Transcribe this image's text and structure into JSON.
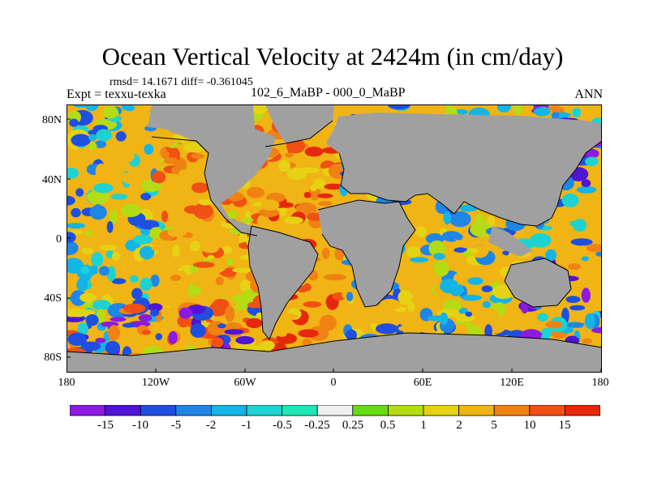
{
  "title": "Ocean Vertical Velocity at 2424m (in cm/day)",
  "stats": "rmsd= 14.1671 diff= -0.361045",
  "left_header": "Expt = texxu-texka",
  "center_header": "102_6_MaBP - 000_0_MaBP",
  "right_header": "ANN",
  "lat_labels": [
    "80N",
    "40N",
    "0",
    "40S",
    "80S"
  ],
  "lon_labels": [
    "180",
    "120W",
    "60W",
    "0",
    "60E",
    "120E",
    "180"
  ],
  "colorbar": {
    "labels": [
      "-15",
      "-10",
      "-5",
      "-2",
      "-1",
      "-0.5",
      "-0.25",
      "0.25",
      "0.5",
      "1",
      "2",
      "5",
      "10",
      "15"
    ],
    "colors": [
      "#8c1ae0",
      "#5014d6",
      "#1e4fe0",
      "#1e86e6",
      "#14b4e6",
      "#1ed2d2",
      "#1ee6b4",
      "#f0f0f0",
      "#64dc14",
      "#b4dc14",
      "#e6d214",
      "#f0b414",
      "#f08214",
      "#f05014",
      "#e6280a"
    ]
  },
  "land_color": "#a0a0a0",
  "chart_data": {
    "type": "heatmap",
    "title": "Ocean Vertical Velocity at 2424m (in cm/day)",
    "x_range": [
      -180,
      180
    ],
    "y_range": [
      -90,
      90
    ],
    "x_ticks": [
      "180",
      "120W",
      "60W",
      "0",
      "60E",
      "120E",
      "180"
    ],
    "y_ticks": [
      "80N",
      "40N",
      "0",
      "40S",
      "80S"
    ],
    "contour_levels": [
      -15,
      -10,
      -5,
      -2,
      -1,
      -0.5,
      -0.25,
      0.25,
      0.5,
      1,
      2,
      5,
      10,
      15
    ],
    "rmsd": 14.1671,
    "diff": -0.361045
  }
}
